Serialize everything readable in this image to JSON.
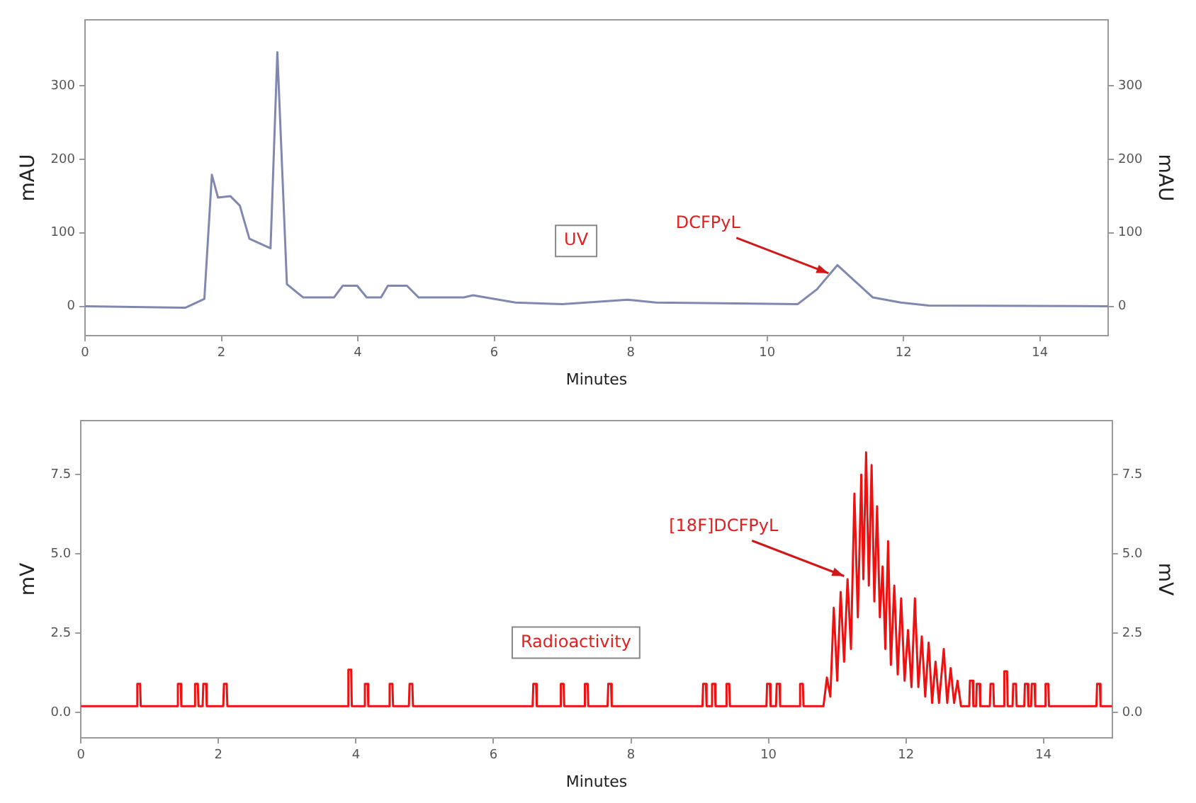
{
  "chart_data": [
    {
      "type": "line",
      "xlabel": "Minutes",
      "ylabel": "mAU",
      "y2label": "mAU",
      "xlim": [
        0,
        15
      ],
      "xticks": [
        0,
        2,
        4,
        6,
        8,
        10,
        12,
        14
      ],
      "ylim": [
        -40,
        390
      ],
      "yticks": [
        0,
        100,
        200,
        300
      ],
      "y2lim": [
        -40,
        390
      ],
      "y2ticks": [
        0,
        100,
        200,
        300
      ],
      "marker": "none",
      "series": [
        {
          "color": "#8088b0",
          "x": [
            0,
            1.47,
            1.75,
            1.86,
            1.95,
            2.13,
            2.27,
            2.41,
            2.72,
            2.82,
            2.96,
            3.2,
            3.65,
            3.78,
            3.99,
            4.13,
            4.34,
            4.44,
            4.72,
            4.89,
            5.55,
            5.69,
            6.31,
            7.0,
            7.96,
            8.37,
            10.45,
            10.73,
            11.03,
            11.55,
            11.96,
            12.37,
            15
          ],
          "values": [
            0,
            -2,
            10,
            179,
            148,
            150,
            137,
            92,
            79,
            346,
            30,
            12,
            12,
            28,
            28,
            12,
            12,
            28,
            28,
            12,
            12,
            15,
            5,
            3,
            9,
            5,
            3,
            23,
            56,
            12,
            5,
            1,
            0
          ]
        }
      ],
      "annotations": [
        "UV",
        {
          "text": "DCFPyL",
          "x": 10.9,
          "y": 45
        }
      ]
    },
    {
      "type": "line",
      "xlabel": "Minutes",
      "ylabel": "mV",
      "y2label": "mV",
      "xlim": [
        0,
        15
      ],
      "xticks": [
        0,
        2,
        4,
        6,
        8,
        10,
        12,
        14
      ],
      "ylim": [
        -0.8,
        9.2
      ],
      "yticks": [
        {
          "value": 0,
          "label": "0.0"
        },
        2.5,
        {
          "value": 5,
          "label": "5.0"
        },
        7.5
      ],
      "y2lim": [
        -0.8,
        9.2
      ],
      "y2ticks": [
        {
          "value": 0,
          "label": "0.0"
        },
        2.5,
        {
          "value": 5,
          "label": "5.0"
        },
        7.5
      ],
      "marker": "none",
      "series": [
        {
          "color": "#ee1111",
          "x": [
            0,
            0.81,
            0.82,
            0.86,
            0.87,
            1.4,
            1.41,
            1.45,
            1.46,
            1.65,
            1.66,
            1.7,
            1.71,
            1.77,
            1.78,
            1.82,
            1.83,
            2.07,
            2.08,
            2.12,
            2.13,
            3.88,
            3.89,
            3.93,
            3.94,
            4.12,
            4.13,
            4.17,
            4.18,
            4.48,
            4.49,
            4.53,
            4.54,
            4.77,
            4.78,
            4.82,
            4.83,
            6.57,
            6.58,
            6.62,
            6.63,
            6.97,
            6.98,
            7.02,
            7.03,
            7.32,
            7.33,
            7.37,
            7.38,
            7.66,
            7.67,
            7.71,
            7.72,
            9.04,
            9.05,
            9.09,
            9.1,
            9.17,
            9.18,
            9.22,
            9.23,
            9.38,
            9.39,
            9.43,
            9.44,
            9.97,
            9.98,
            10.02,
            10.03,
            10.11,
            10.12,
            10.16,
            10.17,
            10.45,
            10.46,
            10.5,
            10.51,
            10.8,
            10.85,
            10.9,
            10.95,
            11.0,
            11.05,
            11.1,
            11.15,
            11.2,
            11.25,
            11.3,
            11.35,
            11.38,
            11.42,
            11.46,
            11.5,
            11.54,
            11.58,
            11.62,
            11.66,
            11.7,
            11.74,
            11.78,
            11.83,
            11.88,
            11.93,
            11.98,
            12.03,
            12.08,
            12.13,
            12.18,
            12.23,
            12.28,
            12.33,
            12.38,
            12.43,
            12.48,
            12.55,
            12.6,
            12.65,
            12.7,
            12.75,
            12.8,
            12.92,
            12.93,
            12.97,
            12.98,
            13.02,
            13.03,
            13.07,
            13.08,
            13.22,
            13.23,
            13.27,
            13.28,
            13.42,
            13.43,
            13.47,
            13.48,
            13.55,
            13.56,
            13.6,
            13.61,
            13.72,
            13.73,
            13.77,
            13.78,
            13.82,
            13.83,
            13.87,
            13.88,
            14.02,
            14.03,
            14.07,
            14.08,
            14.77,
            14.78,
            14.82,
            14.83,
            15
          ],
          "values": [
            0.2,
            0.2,
            0.9,
            0.9,
            0.2,
            0.2,
            0.9,
            0.9,
            0.2,
            0.2,
            0.9,
            0.9,
            0.2,
            0.2,
            0.9,
            0.9,
            0.2,
            0.2,
            0.9,
            0.9,
            0.2,
            0.2,
            1.35,
            1.35,
            0.2,
            0.2,
            0.9,
            0.9,
            0.2,
            0.2,
            0.9,
            0.9,
            0.2,
            0.2,
            0.9,
            0.9,
            0.2,
            0.2,
            0.9,
            0.9,
            0.2,
            0.2,
            0.9,
            0.9,
            0.2,
            0.2,
            0.9,
            0.9,
            0.2,
            0.2,
            0.9,
            0.9,
            0.2,
            0.2,
            0.9,
            0.9,
            0.2,
            0.2,
            0.9,
            0.9,
            0.2,
            0.2,
            0.9,
            0.9,
            0.2,
            0.2,
            0.9,
            0.9,
            0.2,
            0.2,
            0.9,
            0.9,
            0.2,
            0.2,
            0.9,
            0.9,
            0.2,
            0.2,
            1.1,
            0.5,
            3.3,
            1.0,
            3.8,
            1.6,
            4.2,
            2.0,
            6.9,
            3.0,
            7.5,
            4.2,
            8.2,
            4.0,
            7.8,
            3.5,
            6.5,
            3.0,
            4.6,
            2.0,
            5.4,
            1.5,
            4.0,
            1.2,
            3.6,
            1.0,
            2.6,
            0.8,
            3.6,
            0.8,
            2.4,
            0.5,
            2.2,
            0.3,
            1.6,
            0.3,
            2.0,
            0.3,
            1.4,
            0.3,
            1.0,
            0.2,
            0.2,
            1.0,
            1.0,
            0.2,
            0.2,
            0.9,
            0.9,
            0.2,
            0.2,
            0.9,
            0.9,
            0.2,
            0.2,
            1.3,
            1.3,
            0.2,
            0.2,
            0.9,
            0.9,
            0.2,
            0.2,
            0.9,
            0.9,
            0.2,
            0.2,
            0.9,
            0.9,
            0.2,
            0.2,
            0.9,
            0.9,
            0.2,
            0.2,
            0.9,
            0.9,
            0.2,
            0.2
          ]
        }
      ],
      "annotations": [
        "Radioactivity",
        {
          "text": "[18F]DCFPyL",
          "x": 11.1,
          "y": 4.3
        }
      ]
    }
  ]
}
